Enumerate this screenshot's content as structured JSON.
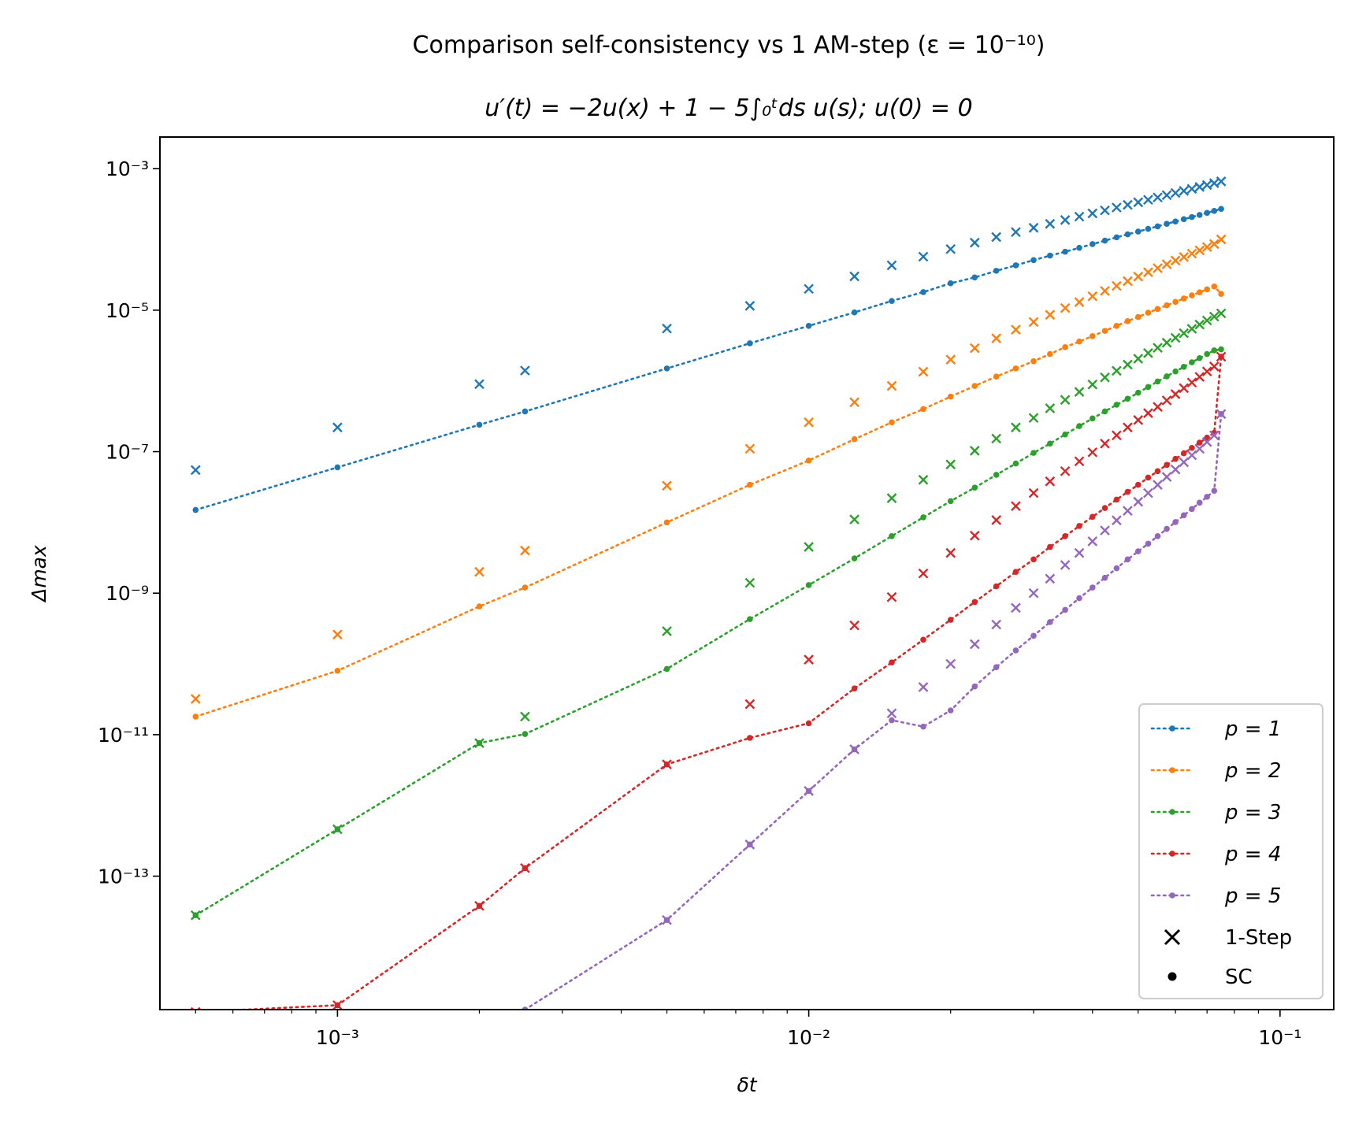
{
  "chart_data": {
    "type": "line",
    "title": "Comparison self-consistency vs 1 AM-step (ε = 10⁻¹⁰)",
    "subtitle": "u′(t) = −2u(x) + 1 − 5∫₀ᵗds u(s);    u(0) = 0",
    "xlabel": "δt",
    "ylabel": "Δmax",
    "xscale": "log",
    "yscale": "log",
    "xlim": [
      0.00042,
      0.13
    ],
    "ylim": [
      1.3e-15,
      0.0028
    ],
    "grid": false,
    "legend_position": "lower-right",
    "xticks": [
      {
        "value": 0.001,
        "label": "10⁻³"
      },
      {
        "value": 0.01,
        "label": "10⁻²"
      },
      {
        "value": 0.1,
        "label": "10⁻¹"
      }
    ],
    "yticks": [
      {
        "value": 0.001,
        "label": "10⁻³"
      },
      {
        "value": 1e-05,
        "label": "10⁻⁵"
      },
      {
        "value": 1e-07,
        "label": "10⁻⁷"
      },
      {
        "value": 1e-09,
        "label": "10⁻⁹"
      },
      {
        "value": 1e-11,
        "label": "10⁻¹¹"
      },
      {
        "value": 1e-13,
        "label": "10⁻¹³"
      }
    ],
    "marker_legend": [
      {
        "marker": "x",
        "label": "1-Step"
      },
      {
        "marker": "dot",
        "label": "SC"
      }
    ],
    "x": [
      0.0005,
      0.001,
      0.002,
      0.0025,
      0.005,
      0.0075,
      0.01,
      0.0125,
      0.015,
      0.0175,
      0.02,
      0.0225,
      0.025,
      0.0275,
      0.03,
      0.0325,
      0.035,
      0.0375,
      0.04,
      0.0425,
      0.045,
      0.0475,
      0.05,
      0.0525,
      0.055,
      0.0575,
      0.06,
      0.0625,
      0.065,
      0.0675,
      0.07,
      0.0725,
      0.075
    ],
    "series": [
      {
        "name": "p = 1",
        "color": "#1f77b4",
        "sc": [
          1.5e-08,
          6e-08,
          2.4e-07,
          3.7e-07,
          1.5e-06,
          3.4e-06,
          6e-06,
          9.3e-06,
          1.35e-05,
          1.8e-05,
          2.4e-05,
          2.9e-05,
          3.6e-05,
          4.3e-05,
          5.1e-05,
          5.9e-05,
          6.7e-05,
          7.6e-05,
          8.6e-05,
          9.6e-05,
          0.000107,
          0.000118,
          0.000129,
          0.000141,
          0.000153,
          0.000166,
          0.000179,
          0.000193,
          0.000207,
          0.000222,
          0.000237,
          0.000253,
          0.00027
        ],
        "step": [
          5.5e-08,
          2.2e-07,
          9e-07,
          1.4e-06,
          5.5e-06,
          1.15e-05,
          2e-05,
          3e-05,
          4.3e-05,
          5.7e-05,
          7.3e-05,
          9e-05,
          0.000108,
          0.000127,
          0.000146,
          0.000166,
          0.000188,
          0.00021,
          0.000233,
          0.000257,
          0.000282,
          0.000308,
          0.000335,
          0.000363,
          0.000392,
          0.000422,
          0.000453,
          0.000485,
          0.000518,
          0.000552,
          0.000587,
          0.000623,
          0.00066
        ]
      },
      {
        "name": "p = 2",
        "color": "#ff7f0e",
        "sc": [
          1.8e-11,
          8e-11,
          6.5e-10,
          1.2e-09,
          1e-08,
          3.4e-08,
          7.5e-08,
          1.5e-07,
          2.6e-07,
          4e-07,
          6e-07,
          8.5e-07,
          1.15e-06,
          1.5e-06,
          1.9e-06,
          2.4e-06,
          3e-06,
          3.6e-06,
          4.3e-06,
          5.1e-06,
          6e-06,
          7e-06,
          8e-06,
          9.2e-06,
          1.04e-05,
          1.17e-05,
          1.31e-05,
          1.46e-05,
          1.62e-05,
          1.79e-05,
          1.97e-05,
          2.16e-05,
          1.7e-05
        ],
        "step": [
          3.2e-11,
          2.6e-10,
          2e-09,
          4e-09,
          3.3e-08,
          1.1e-07,
          2.6e-07,
          5e-07,
          8.5e-07,
          1.35e-06,
          2e-06,
          2.9e-06,
          4e-06,
          5.3e-06,
          6.8e-06,
          8.6e-06,
          1.07e-05,
          1.3e-05,
          1.57e-05,
          1.87e-05,
          2.2e-05,
          2.57e-05,
          2.98e-05,
          3.43e-05,
          3.92e-05,
          4.45e-05,
          5.02e-05,
          5.64e-05,
          6.3e-05,
          7e-05,
          7.8e-05,
          8.6e-05,
          0.0001
        ]
      },
      {
        "name": "p = 3",
        "color": "#2ca02c",
        "sc": [
          2.8e-14,
          4.6e-13,
          7.6e-12,
          1.02e-11,
          8.5e-11,
          4.3e-10,
          1.3e-09,
          3.1e-09,
          6.4e-09,
          1.18e-08,
          2e-08,
          3.1e-08,
          4.7e-08,
          6.8e-08,
          9.6e-08,
          1.3e-07,
          1.75e-07,
          2.3e-07,
          2.95e-07,
          3.7e-07,
          4.6e-07,
          5.6e-07,
          6.8e-07,
          8.2e-07,
          9.8e-07,
          1.16e-06,
          1.36e-06,
          1.58e-06,
          1.83e-06,
          2.1e-06,
          2.4e-06,
          2.7e-06,
          2.8e-06
        ],
        "step": [
          2.8e-14,
          4.6e-13,
          7.6e-12,
          1.8e-11,
          2.9e-10,
          1.4e-09,
          4.5e-09,
          1.1e-08,
          2.2e-08,
          4e-08,
          6.6e-08,
          1.03e-07,
          1.53e-07,
          2.2e-07,
          3e-07,
          4.1e-07,
          5.4e-07,
          7e-07,
          8.9e-07,
          1.12e-06,
          1.39e-06,
          1.7e-06,
          2.06e-06,
          2.47e-06,
          2.94e-06,
          3.47e-06,
          4.06e-06,
          4.72e-06,
          5.45e-06,
          6.26e-06,
          7.15e-06,
          8.1e-06,
          9e-06
        ]
      },
      {
        "name": "p = 4",
        "color": "#d62728",
        "sc": [
          1.2e-15,
          1.5e-15,
          3.8e-14,
          1.3e-13,
          3.8e-12,
          9e-12,
          1.45e-11,
          4.5e-11,
          1.05e-10,
          2.2e-10,
          4.2e-10,
          7.5e-10,
          1.25e-09,
          2e-09,
          3e-09,
          4.5e-09,
          6.4e-09,
          8.9e-09,
          1.2e-08,
          1.6e-08,
          2.1e-08,
          2.7e-08,
          3.4e-08,
          4.3e-08,
          5.3e-08,
          6.5e-08,
          7.9e-08,
          9.5e-08,
          1.13e-07,
          1.34e-07,
          1.58e-07,
          1.85e-07,
          2.2e-06
        ],
        "step": [
          1.2e-15,
          1.5e-15,
          3.8e-14,
          1.3e-13,
          3.8e-12,
          2.7e-11,
          1.15e-10,
          3.5e-10,
          8.8e-10,
          1.9e-09,
          3.7e-09,
          6.5e-09,
          1.08e-08,
          1.7e-08,
          2.6e-08,
          3.8e-08,
          5.3e-08,
          7.3e-08,
          9.8e-08,
          1.3e-07,
          1.7e-07,
          2.2e-07,
          2.8e-07,
          3.5e-07,
          4.3e-07,
          5.3e-07,
          6.5e-07,
          7.9e-07,
          9.5e-07,
          1.14e-06,
          1.36e-06,
          1.6e-06,
          2.2e-06
        ]
      },
      {
        "name": "p = 5",
        "color": "#9467bd",
        "sc": [
          null,
          null,
          null,
          1.3e-15,
          2.4e-14,
          2.8e-13,
          1.6e-12,
          6.2e-12,
          1.6e-11,
          1.3e-11,
          2.2e-11,
          4.8e-11,
          9e-11,
          1.55e-10,
          2.5e-10,
          3.9e-10,
          5.8e-10,
          8.5e-10,
          1.2e-09,
          1.65e-09,
          2.25e-09,
          3e-09,
          3.9e-09,
          5e-09,
          6.4e-09,
          8.1e-09,
          1.01e-08,
          1.26e-08,
          1.55e-08,
          1.9e-08,
          2.3e-08,
          2.8e-08,
          3.4e-07
        ],
        "step": [
          null,
          null,
          null,
          null,
          2.4e-14,
          2.8e-13,
          1.6e-12,
          6.2e-12,
          2e-11,
          4.7e-11,
          1e-10,
          1.9e-10,
          3.6e-10,
          6.2e-10,
          1e-09,
          1.6e-09,
          2.5e-09,
          3.7e-09,
          5.4e-09,
          7.7e-09,
          1.07e-08,
          1.46e-08,
          1.96e-08,
          2.6e-08,
          3.4e-08,
          4.4e-08,
          5.6e-08,
          7.1e-08,
          8.9e-08,
          1.1e-07,
          1.37e-07,
          1.7e-07,
          3.4e-07
        ]
      }
    ]
  }
}
